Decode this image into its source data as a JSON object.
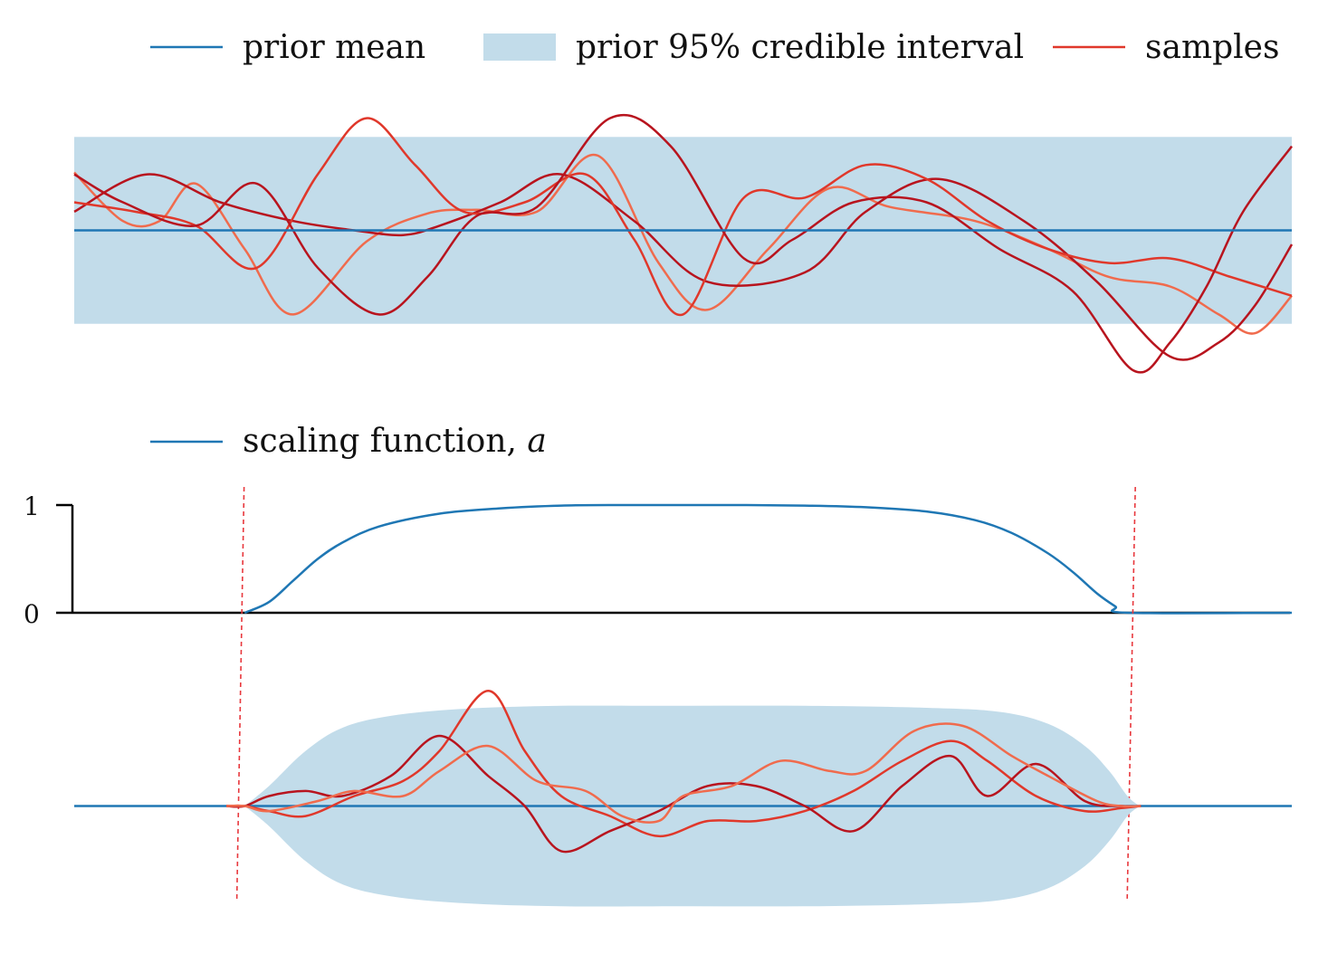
{
  "legend": {
    "prior_mean": "prior mean",
    "prior_interval": "prior 95% credible interval",
    "samples": "samples",
    "scaling_label": "scaling function, ",
    "scaling_symbol": "a"
  },
  "colors": {
    "mean": "#1f77b4",
    "band": "#c2dcea",
    "sample_light": "#f06b4d",
    "sample_mid": "#e0382b",
    "sample_dark": "#b8141e",
    "axis": "#000000",
    "boundary": "#e8383d"
  },
  "chart_data": [
    {
      "type": "line",
      "title": "",
      "xlim": [
        0,
        1
      ],
      "ylim": [
        -1.7,
        1.4
      ],
      "band": {
        "lower": -1,
        "upper": 1
      },
      "mean": 0,
      "series": [
        {
          "x": [
            0,
            0.04,
            0.07,
            0.1,
            0.14,
            0.18,
            0.24,
            0.29,
            0.33,
            0.38,
            0.43,
            0.48,
            0.52,
            0.57,
            0.62,
            0.67,
            0.74,
            0.8,
            0.85,
            0.9,
            0.94,
            0.97,
            1.0
          ],
          "y": [
            0.62,
            0.1,
            0.1,
            0.5,
            -0.2,
            -0.9,
            -0.12,
            0.18,
            0.22,
            0.2,
            0.8,
            -0.35,
            -0.85,
            -0.2,
            0.45,
            0.25,
            0.1,
            -0.2,
            -0.5,
            -0.6,
            -0.9,
            -1.1,
            -0.7
          ]
        },
        {
          "x": [
            0,
            0.06,
            0.12,
            0.18,
            0.23,
            0.27,
            0.3,
            0.35,
            0.4,
            0.46,
            0.52,
            0.6,
            0.65,
            0.71,
            0.78,
            0.84,
            0.9,
            0.94,
            0.97,
            1.0
          ],
          "y": [
            0.2,
            0.6,
            0.3,
            0.1,
            0.0,
            -0.05,
            0.05,
            0.3,
            0.6,
            0.1,
            -0.55,
            -0.45,
            0.2,
            0.55,
            0.1,
            -0.55,
            -1.35,
            -1.2,
            -0.8,
            -0.15
          ]
        },
        {
          "x": [
            0,
            0.05,
            0.1,
            0.15,
            0.2,
            0.24,
            0.28,
            0.32,
            0.37,
            0.42,
            0.46,
            0.5,
            0.55,
            0.6,
            0.65,
            0.7,
            0.75,
            0.8,
            0.85,
            0.9,
            0.95,
            1.0
          ],
          "y": [
            0.3,
            0.2,
            0.05,
            -0.4,
            0.6,
            1.2,
            0.7,
            0.2,
            0.3,
            0.6,
            -0.1,
            -0.9,
            0.35,
            0.35,
            0.7,
            0.55,
            0.1,
            -0.2,
            -0.35,
            -0.3,
            -0.5,
            -0.7
          ]
        },
        {
          "x": [
            0,
            0.04,
            0.1,
            0.15,
            0.2,
            0.25,
            0.29,
            0.33,
            0.38,
            0.44,
            0.49,
            0.55,
            0.59,
            0.64,
            0.7,
            0.76,
            0.82,
            0.87,
            0.9,
            0.93,
            0.96,
            1.0
          ],
          "y": [
            0.6,
            0.3,
            0.05,
            0.5,
            -0.4,
            -0.9,
            -0.5,
            0.15,
            0.25,
            1.2,
            0.9,
            -0.3,
            -0.1,
            0.3,
            0.3,
            -0.2,
            -0.65,
            -1.5,
            -1.2,
            -0.6,
            0.2,
            0.9
          ]
        }
      ]
    },
    {
      "type": "line",
      "title": "",
      "xlim": [
        0,
        1
      ],
      "ylim": [
        0,
        1
      ],
      "yticks": [
        0,
        1
      ],
      "ytick_labels": [
        "0",
        "1"
      ],
      "boundaries": [
        0.138,
        0.87
      ],
      "scaling": {
        "x": [
          0.14,
          0.16,
          0.18,
          0.2,
          0.22,
          0.25,
          0.3,
          0.35,
          0.4,
          0.45,
          0.5,
          0.55,
          0.6,
          0.65,
          0.7,
          0.74,
          0.77,
          0.8,
          0.82,
          0.84,
          0.855,
          0.865,
          1.0
        ],
        "y": [
          0,
          0.1,
          0.3,
          0.5,
          0.65,
          0.8,
          0.92,
          0.97,
          0.995,
          1.0,
          1.0,
          1.0,
          0.995,
          0.98,
          0.94,
          0.86,
          0.74,
          0.55,
          0.38,
          0.18,
          0.06,
          0.0,
          0.0
        ]
      }
    },
    {
      "type": "line",
      "title": "",
      "xlim": [
        0,
        1
      ],
      "ylim": [
        -1.35,
        1.45
      ],
      "mean": 0,
      "band_halfwidth": [
        {
          "x": 0.14,
          "h": 0
        },
        {
          "x": 0.16,
          "h": 0.2
        },
        {
          "x": 0.19,
          "h": 0.55
        },
        {
          "x": 0.22,
          "h": 0.78
        },
        {
          "x": 0.26,
          "h": 0.9
        },
        {
          "x": 0.32,
          "h": 0.97
        },
        {
          "x": 0.4,
          "h": 1.0
        },
        {
          "x": 0.5,
          "h": 1.0
        },
        {
          "x": 0.6,
          "h": 1.0
        },
        {
          "x": 0.7,
          "h": 0.98
        },
        {
          "x": 0.76,
          "h": 0.94
        },
        {
          "x": 0.8,
          "h": 0.82
        },
        {
          "x": 0.83,
          "h": 0.6
        },
        {
          "x": 0.85,
          "h": 0.35
        },
        {
          "x": 0.865,
          "h": 0.1
        },
        {
          "x": 0.875,
          "h": 0
        }
      ],
      "series": [
        {
          "x": [
            0.125,
            0.14,
            0.16,
            0.19,
            0.23,
            0.27,
            0.3,
            0.34,
            0.37,
            0.4,
            0.44,
            0.48,
            0.52,
            0.56,
            0.6,
            0.64,
            0.68,
            0.72,
            0.75,
            0.79,
            0.83,
            0.86,
            0.876
          ],
          "y": [
            0,
            0,
            -0.05,
            -0.1,
            0.1,
            0.25,
            0.55,
            1.15,
            0.55,
            0.1,
            -0.1,
            -0.3,
            -0.15,
            -0.15,
            -0.05,
            0.15,
            0.45,
            0.65,
            0.45,
            0.1,
            -0.05,
            -0.02,
            0
          ]
        },
        {
          "x": [
            0.125,
            0.14,
            0.16,
            0.19,
            0.22,
            0.26,
            0.3,
            0.34,
            0.37,
            0.4,
            0.44,
            0.48,
            0.52,
            0.56,
            0.6,
            0.64,
            0.68,
            0.72,
            0.75,
            0.79,
            0.83,
            0.86,
            0.876
          ],
          "y": [
            0,
            0,
            0.1,
            0.15,
            0.1,
            0.3,
            0.7,
            0.3,
            0.0,
            -0.45,
            -0.25,
            -0.05,
            0.2,
            0.2,
            0.0,
            -0.25,
            0.2,
            0.5,
            0.1,
            0.42,
            0.05,
            0.0,
            0
          ]
        },
        {
          "x": [
            0.125,
            0.14,
            0.16,
            0.2,
            0.23,
            0.27,
            0.3,
            0.34,
            0.38,
            0.42,
            0.45,
            0.48,
            0.5,
            0.54,
            0.58,
            0.62,
            0.65,
            0.69,
            0.73,
            0.77,
            0.8,
            0.84,
            0.86,
            0.876
          ],
          "y": [
            0,
            0,
            -0.05,
            0.05,
            0.15,
            0.1,
            0.35,
            0.6,
            0.25,
            0.15,
            -0.1,
            -0.15,
            0.1,
            0.2,
            0.45,
            0.35,
            0.35,
            0.75,
            0.8,
            0.5,
            0.3,
            0.05,
            0.0,
            0
          ]
        }
      ]
    }
  ]
}
